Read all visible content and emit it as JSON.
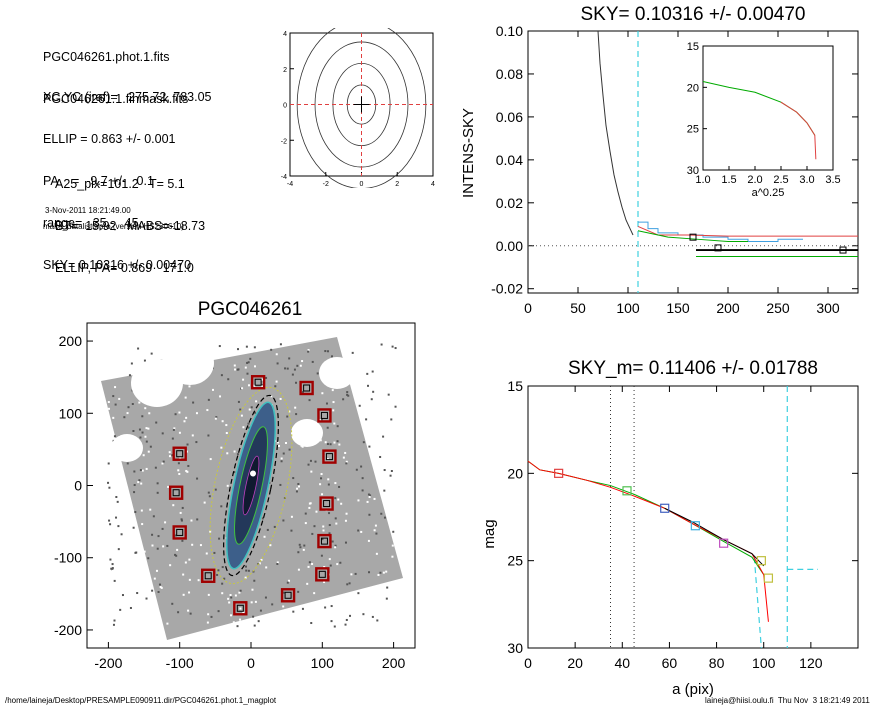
{
  "header": {
    "files": [
      "PGC046261.phot.1.fits",
      "PGC046261.1.finmask.fits"
    ],
    "params": [
      "XC,YC (iraf)=   275.72, 783.05",
      "ELLIP = 0.863 +/- 0.001",
      "PA    =  -9.7 +/-   0.1",
      "range=   35.-   45.",
      "SKY= 0.10316 +/- 0.00470"
    ],
    "stats": [
      "A25_pix=101.2   T= 5.1",
      "BT=  15.92   MABS=-18.73",
      "ELLIP, PA= 0.869   171.0"
    ],
    "date": "3-Nov-2011 18:21:49.00",
    "program": "make_datalist0.pro (version HS230610)"
  },
  "footer": {
    "path": "/home/laineja/Desktop/PRESAMPLE090911.dir/PGC046261.phot.1_magplot",
    "user": "laineja@hiisi.oulu.fi  Thu Nov  3 18:21:49 2011"
  },
  "chart_data": [
    {
      "id": "contour",
      "type": "contour",
      "xlim": [
        -4,
        4
      ],
      "ylim": [
        -4,
        4
      ],
      "xticks": [
        "-4",
        "-2",
        "0",
        "2",
        "4"
      ],
      "yticks": [
        "-4",
        "-2",
        "0",
        "2",
        "4"
      ]
    },
    {
      "id": "sky",
      "type": "line",
      "title": "SKY= 0.10316 +/- 0.00470",
      "ylabel": "INTENS-SKY",
      "xlim": [
        0,
        330
      ],
      "ylim": [
        -0.022,
        0.1
      ],
      "xticks": [
        "0",
        "50",
        "100",
        "150",
        "200",
        "250",
        "300"
      ],
      "yticks": [
        "-0.02",
        "0.00",
        "0.02",
        "0.04",
        "0.06",
        "0.08",
        "0.10"
      ],
      "sky_line_x": 110,
      "profile": [
        [
          70,
          0.1
        ],
        [
          72,
          0.085
        ],
        [
          75,
          0.07
        ],
        [
          78,
          0.056
        ],
        [
          82,
          0.044
        ],
        [
          86,
          0.033
        ],
        [
          90,
          0.025
        ],
        [
          94,
          0.018
        ],
        [
          98,
          0.012
        ],
        [
          102,
          0.008
        ],
        [
          105,
          0.005
        ]
      ],
      "inset": {
        "xlabel": "a^0.25",
        "xlim": [
          1.0,
          3.5
        ],
        "ylim": [
          30,
          15
        ],
        "xticks": [
          "1.0",
          "1.5",
          "2.0",
          "2.5",
          "3.0",
          "3.5"
        ],
        "yticks": [
          "15",
          "20",
          "25",
          "30"
        ]
      }
    },
    {
      "id": "image",
      "type": "image",
      "title": "PGC046261",
      "xlim": [
        -230,
        230
      ],
      "ylim": [
        -225,
        225
      ],
      "xticks": [
        "-200",
        "-100",
        "0",
        "100",
        "200"
      ],
      "yticks": [
        "-200",
        "-100",
        "0",
        "100",
        "200"
      ],
      "boxes": [
        [
          10,
          143
        ],
        [
          78,
          135
        ],
        [
          103,
          97
        ],
        [
          110,
          40
        ],
        [
          -100,
          44
        ],
        [
          -105,
          -10
        ],
        [
          106,
          -25
        ],
        [
          -100,
          -65
        ],
        [
          103,
          -77
        ],
        [
          -60,
          -125
        ],
        [
          100,
          -123
        ],
        [
          52,
          -152
        ],
        [
          -15,
          -170
        ]
      ]
    },
    {
      "id": "mag",
      "type": "line",
      "title": "SKY_m=  0.11406 +/- 0.01788",
      "xlabel": "a (pix)",
      "ylabel": "mag",
      "xlim": [
        0,
        140
      ],
      "ylim": [
        30,
        15
      ],
      "xticks": [
        "0",
        "20",
        "40",
        "60",
        "80",
        "100",
        "120"
      ],
      "yticks": [
        "15",
        "20",
        "25",
        "30"
      ],
      "vlines_dotted": [
        35,
        45
      ],
      "vline_sky": 110,
      "series": [
        {
          "color": "#00aa00",
          "points": [
            [
              0,
              19.3
            ],
            [
              5,
              19.8
            ],
            [
              13,
              20
            ],
            [
              25,
              20.4
            ],
            [
              35,
              20.7
            ],
            [
              45,
              21.2
            ],
            [
              58,
              22
            ],
            [
              70,
              22.9
            ],
            [
              83,
              23.9
            ],
            [
              95,
              24.8
            ],
            [
              100,
              25.8
            ]
          ]
        },
        {
          "color": "#ff0000",
          "points": [
            [
              0,
              19.3
            ],
            [
              5,
              19.8
            ],
            [
              13,
              20
            ],
            [
              25,
              20.4
            ],
            [
              35,
              20.8
            ],
            [
              45,
              21.3
            ],
            [
              58,
              22
            ],
            [
              70,
              22.9
            ],
            [
              83,
              23.8
            ],
            [
              95,
              24.6
            ],
            [
              100,
              25.8
            ],
            [
              102,
              28.5
            ]
          ]
        }
      ],
      "markers": [
        {
          "x": 13,
          "y": 20.0,
          "color": "#e04040"
        },
        {
          "x": 42,
          "y": 21.0,
          "color": "#50c050"
        },
        {
          "x": 58,
          "y": 22.0,
          "color": "#4060c0"
        },
        {
          "x": 71,
          "y": 23.0,
          "color": "#40b0e0"
        },
        {
          "x": 83,
          "y": 24.0,
          "color": "#c050c0"
        },
        {
          "x": 99,
          "y": 25.0,
          "color": "#c0c040"
        },
        {
          "x": 102,
          "y": 26.0,
          "color": "#c0c040"
        }
      ]
    }
  ]
}
